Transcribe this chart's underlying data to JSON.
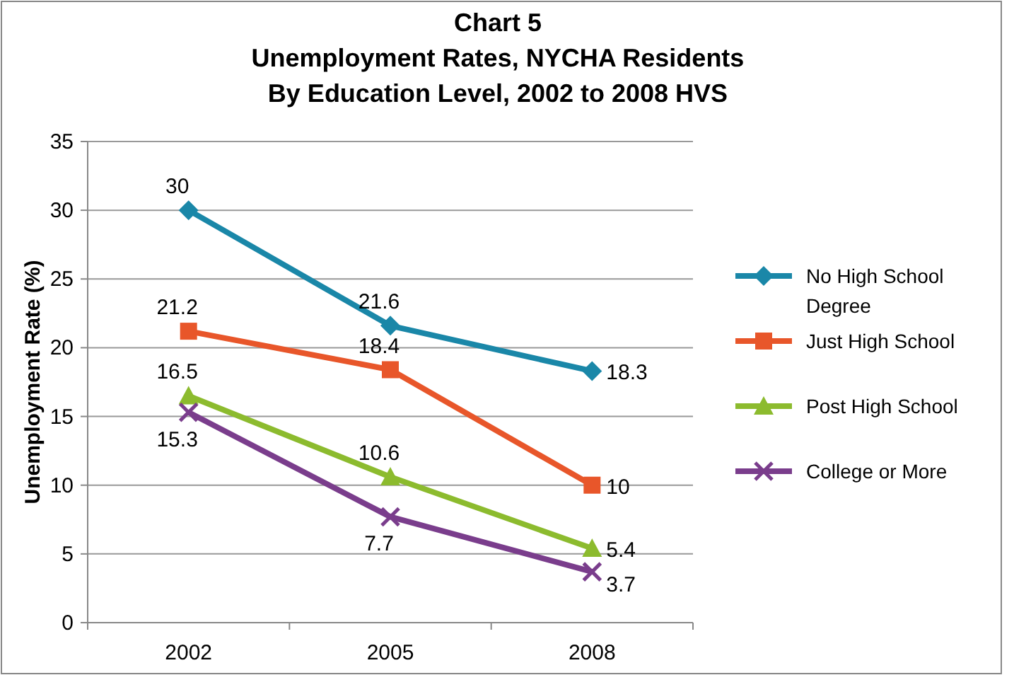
{
  "chart_data": {
    "type": "line",
    "title": "Chart 5\nUnemployment Rates, NYCHA Residents\nBy Education Level, 2002 to 2008 HVS",
    "ylabel": "Unemployment Rate (%)",
    "categories": [
      "2002",
      "2005",
      "2008"
    ],
    "ylim": [
      0,
      35
    ],
    "yticks": [
      0,
      5,
      10,
      15,
      20,
      25,
      30,
      35
    ],
    "grid": "y",
    "legend": "right",
    "data_labels": true,
    "line_style": "solid",
    "series": [
      {
        "name": "No High School Degree",
        "color": "#1a87a8",
        "marker": "diamond",
        "values": [
          30,
          21.6,
          18.3
        ]
      },
      {
        "name": "Just High School",
        "color": "#e8562a",
        "marker": "square",
        "values": [
          21.2,
          18.4,
          10
        ]
      },
      {
        "name": "Post High School",
        "color": "#8cbb2e",
        "marker": "triangle",
        "values": [
          16.5,
          10.6,
          5.4
        ]
      },
      {
        "name": "College or More",
        "color": "#7a3d8c",
        "marker": "cross",
        "values": [
          15.3,
          7.7,
          3.7
        ]
      }
    ]
  }
}
